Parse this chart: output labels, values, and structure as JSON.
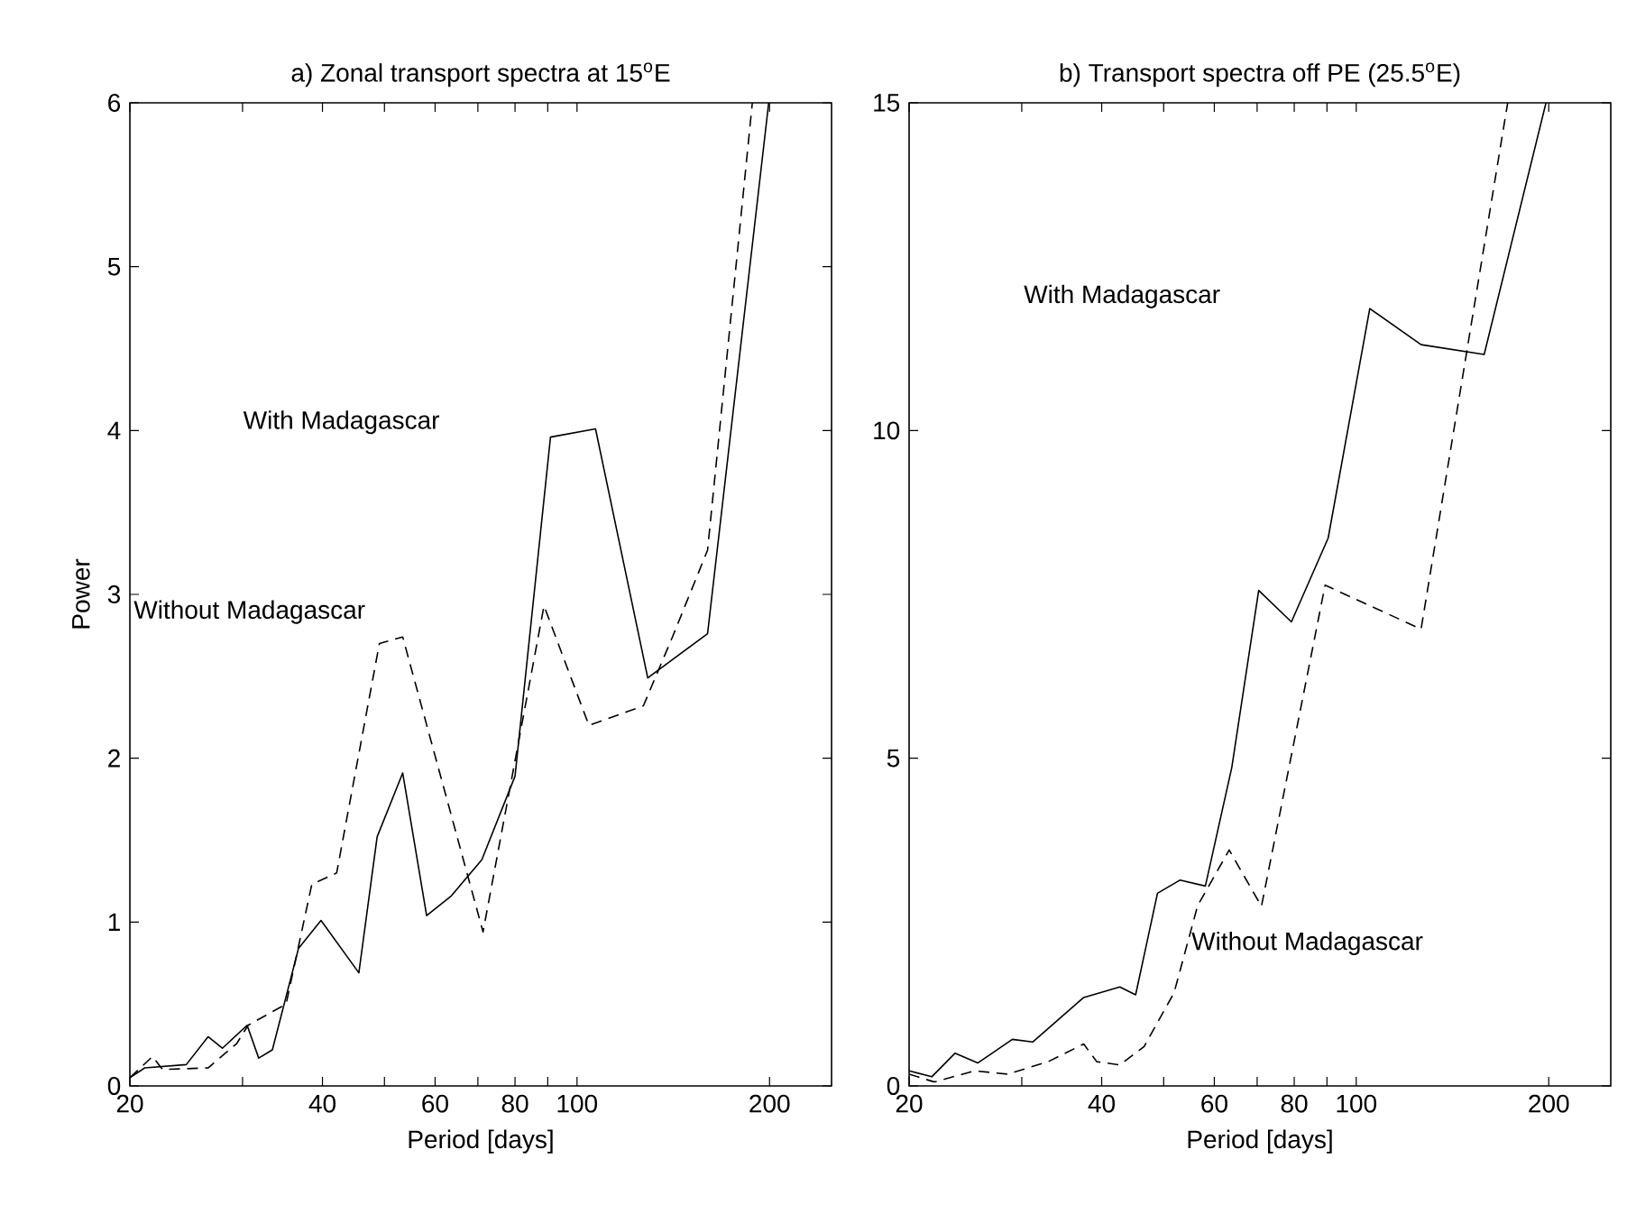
{
  "chart_data": [
    {
      "type": "line",
      "title": "a) Zonal transport spectra at 15$^{o}$E",
      "xlabel": "Period [days]",
      "ylabel": "Power",
      "log": "x",
      "xlim": [
        20,
        250
      ],
      "ylim": [
        0,
        6
      ],
      "xticks": [
        20,
        {
          "value": 30,
          "label": null
        },
        40,
        {
          "value": 50,
          "label": null
        },
        60,
        {
          "value": 70,
          "label": null
        },
        80,
        {
          "value": 90,
          "label": null
        },
        100,
        200
      ],
      "yticks": [
        0,
        1,
        2,
        3,
        4,
        5,
        6
      ],
      "series": [
        {
          "color": "#000000",
          "line_style": "solid",
          "x": [
            20,
            21.1,
            24.5,
            26.5,
            27.9,
            30.5,
            31.8,
            33.4,
            36.7,
            39.8,
            45.6,
            48.7,
            53.4,
            58.2,
            63.6,
            71.0,
            80.0,
            90.9,
            106.9,
            129,
            160,
            199.4
          ],
          "values": [
            0.05,
            0.11,
            0.13,
            0.3,
            0.23,
            0.37,
            0.17,
            0.22,
            0.84,
            1.01,
            0.69,
            1.52,
            1.91,
            1.04,
            1.16,
            1.38,
            1.89,
            3.96,
            4.01,
            2.49,
            2.76,
            6.0
          ]
        },
        {
          "color": "#000000",
          "line_style": "dashed",
          "x": [
            20,
            21.7,
            22.5,
            26.5,
            29.4,
            30.6,
            35.1,
            38.5,
            42.1,
            49.1,
            53.4,
            71.3,
            88.8,
            104.4,
            127,
            141,
            160,
            188
          ],
          "values": [
            0.05,
            0.18,
            0.1,
            0.11,
            0.26,
            0.37,
            0.5,
            1.23,
            1.3,
            2.7,
            2.74,
            0.94,
            2.93,
            2.2,
            2.32,
            2.74,
            3.27,
            6.0
          ]
        }
      ],
      "annotations": [
        "With Madagascar",
        "Without Madagascar"
      ]
    },
    {
      "type": "line",
      "title": "b) Transport spectra off PE (25.5$^{o}$E)",
      "xlabel": "Period [days]",
      "log": "x",
      "xlim": [
        20,
        250
      ],
      "ylim": [
        0,
        15
      ],
      "xticks": [
        20,
        {
          "value": 30,
          "label": null
        },
        40,
        {
          "value": 50,
          "label": null
        },
        60,
        {
          "value": 70,
          "label": null
        },
        80,
        {
          "value": 90,
          "label": null
        },
        100,
        200
      ],
      "yticks": [
        0,
        5,
        10,
        15
      ],
      "series": [
        {
          "color": "#000000",
          "line_style": "solid",
          "x": [
            20,
            21.7,
            23.6,
            25.6,
            29.0,
            31.2,
            37.5,
            42.7,
            45.2,
            48.9,
            53.0,
            58.1,
            63.9,
            70.4,
            79.2,
            90.4,
            105,
            126.3,
            158.5,
            198
          ],
          "values": [
            0.23,
            0.14,
            0.5,
            0.35,
            0.71,
            0.67,
            1.35,
            1.51,
            1.39,
            2.94,
            3.14,
            3.05,
            4.86,
            7.56,
            7.08,
            8.36,
            11.86,
            11.31,
            11.16,
            15
          ]
        },
        {
          "color": "#000000",
          "line_style": "dashed",
          "x": [
            20,
            21.9,
            25.3,
            28.5,
            33.0,
            37.5,
            39.3,
            42.7,
            46.6,
            51.9,
            56.5,
            63.3,
            71.1,
            89.4,
            126.3,
            172.5
          ],
          "values": [
            0.18,
            0.06,
            0.23,
            0.18,
            0.37,
            0.64,
            0.37,
            0.32,
            0.6,
            1.42,
            2.75,
            3.6,
            2.74,
            7.64,
            6.97,
            15
          ]
        }
      ],
      "annotations": [
        "With Madagascar",
        "Without Madagascar"
      ]
    }
  ]
}
